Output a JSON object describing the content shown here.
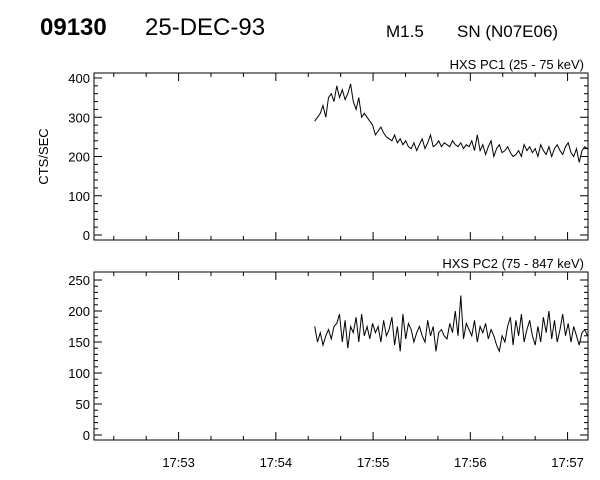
{
  "header": {
    "event_id": "09130",
    "date": "25-DEC-93",
    "flare_class": "M1.5",
    "location": "SN (N07E06)"
  },
  "chart_data": [
    {
      "type": "line",
      "title": "HXS PC1 (25 - 75 keV)",
      "ylabel": "CTS/SEC",
      "xlabel": "",
      "ylim": [
        0,
        400
      ],
      "yticks": [
        "0",
        "100",
        "200",
        "300",
        "400"
      ],
      "ytick_values": [
        0,
        100,
        200,
        300,
        400
      ],
      "xlim_minutes": [
        52.13,
        57.21
      ],
      "start_minute": 54.4,
      "step_seconds": 1.7,
      "values": [
        290,
        300,
        310,
        330,
        300,
        350,
        360,
        340,
        380,
        350,
        370,
        345,
        360,
        385,
        340,
        320,
        350,
        300,
        310,
        300,
        290,
        280,
        255,
        265,
        275,
        260,
        250,
        245,
        240,
        255,
        235,
        245,
        230,
        240,
        225,
        220,
        235,
        215,
        230,
        245,
        220,
        235,
        255,
        225,
        230,
        240,
        225,
        235,
        230,
        225,
        240,
        230,
        225,
        235,
        220,
        230,
        225,
        240,
        215,
        255,
        215,
        230,
        205,
        225,
        240,
        200,
        220,
        230,
        210,
        215,
        225,
        210,
        200,
        205,
        215,
        200,
        230,
        215,
        225,
        210,
        220,
        200,
        230,
        215,
        205,
        225,
        200,
        220,
        230,
        215,
        205,
        225,
        235,
        210,
        200,
        220,
        185,
        215,
        225,
        220
      ]
    },
    {
      "type": "line",
      "title": "HXS PC2 (75 - 847 keV)",
      "ylabel": "",
      "xlabel": "",
      "ylim": [
        0,
        250
      ],
      "yticks": [
        "0",
        "50",
        "100",
        "150",
        "200",
        "250"
      ],
      "ytick_values": [
        0,
        50,
        100,
        150,
        200,
        250
      ],
      "xticks": [
        "17:53",
        "17:54",
        "17:55",
        "17:56",
        "17:57"
      ],
      "xtick_minutes": [
        53,
        54,
        55,
        56,
        57
      ],
      "xlim_minutes": [
        52.13,
        57.21
      ],
      "start_minute": 54.4,
      "step_seconds": 1.7,
      "values": [
        175,
        150,
        165,
        145,
        160,
        170,
        155,
        175,
        180,
        195,
        150,
        185,
        140,
        175,
        165,
        190,
        150,
        195,
        160,
        175,
        155,
        180,
        165,
        175,
        150,
        185,
        160,
        170,
        190,
        145,
        175,
        135,
        195,
        155,
        180,
        170,
        150,
        165,
        175,
        160,
        150,
        185,
        160,
        175,
        135,
        165,
        170,
        160,
        155,
        180,
        165,
        200,
        160,
        225,
        155,
        180,
        170,
        160,
        185,
        150,
        175,
        165,
        180,
        155,
        170,
        160,
        145,
        135,
        160,
        150,
        175,
        190,
        145,
        185,
        160,
        195,
        150,
        170,
        185,
        160,
        145,
        175,
        150,
        190,
        165,
        200,
        155,
        185,
        150,
        170,
        195,
        160,
        180,
        150,
        175,
        160,
        145,
        165,
        170,
        160
      ]
    }
  ]
}
